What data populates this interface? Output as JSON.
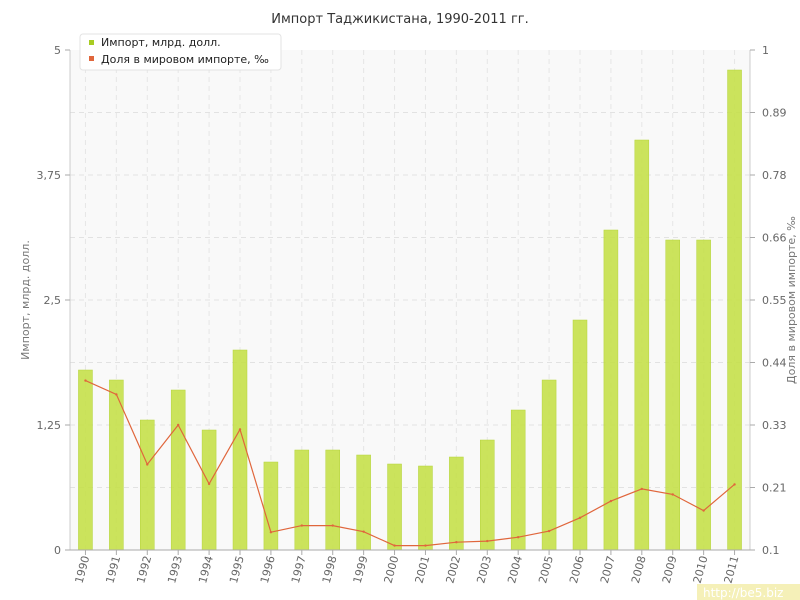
{
  "chart_data": {
    "type": "bar",
    "title": "Импорт Таджикистана, 1990-2011 гг.",
    "ylabel": "Импорт, млрд. долл.",
    "ylabel_right": "Доля в мировом импорте, ‰",
    "categories": [
      "1990",
      "1991",
      "1992",
      "1993",
      "1994",
      "1995",
      "1996",
      "1997",
      "1998",
      "1999",
      "2000",
      "2001",
      "2002",
      "2003",
      "2004",
      "2005",
      "2006",
      "2007",
      "2008",
      "2009",
      "2010",
      "2011"
    ],
    "ylim": [
      0,
      5
    ],
    "yticks": [
      "0",
      "1,25",
      "2,5",
      "3,75",
      "5"
    ],
    "y2lim": [
      0.1,
      1
    ],
    "y2ticks": [
      "0.1",
      "0.21",
      "0.33",
      "0.44",
      "0.55",
      "0.66",
      "0.78",
      "0.89",
      "1"
    ],
    "series": [
      {
        "name": "Импорт, млрд. долл.",
        "type": "bar",
        "axis": "left",
        "color": "#c5e04a",
        "values": [
          1.8,
          1.7,
          1.3,
          1.6,
          1.2,
          2.0,
          0.88,
          1.0,
          1.0,
          0.95,
          0.86,
          0.84,
          0.93,
          1.1,
          1.4,
          1.7,
          2.3,
          3.2,
          4.1,
          3.1,
          3.1,
          4.8
        ]
      },
      {
        "name": "Доля в мировом импорте, ‰",
        "type": "line",
        "axis": "right",
        "color": "#e0663c",
        "values": [
          0.405,
          0.38,
          0.254,
          0.325,
          0.219,
          0.317,
          0.132,
          0.144,
          0.144,
          0.133,
          0.108,
          0.108,
          0.114,
          0.116,
          0.123,
          0.134,
          0.158,
          0.188,
          0.21,
          0.2,
          0.171,
          0.218
        ]
      }
    ],
    "grid": true,
    "legend_position": "top-left"
  },
  "watermark": "http://be5.biz"
}
